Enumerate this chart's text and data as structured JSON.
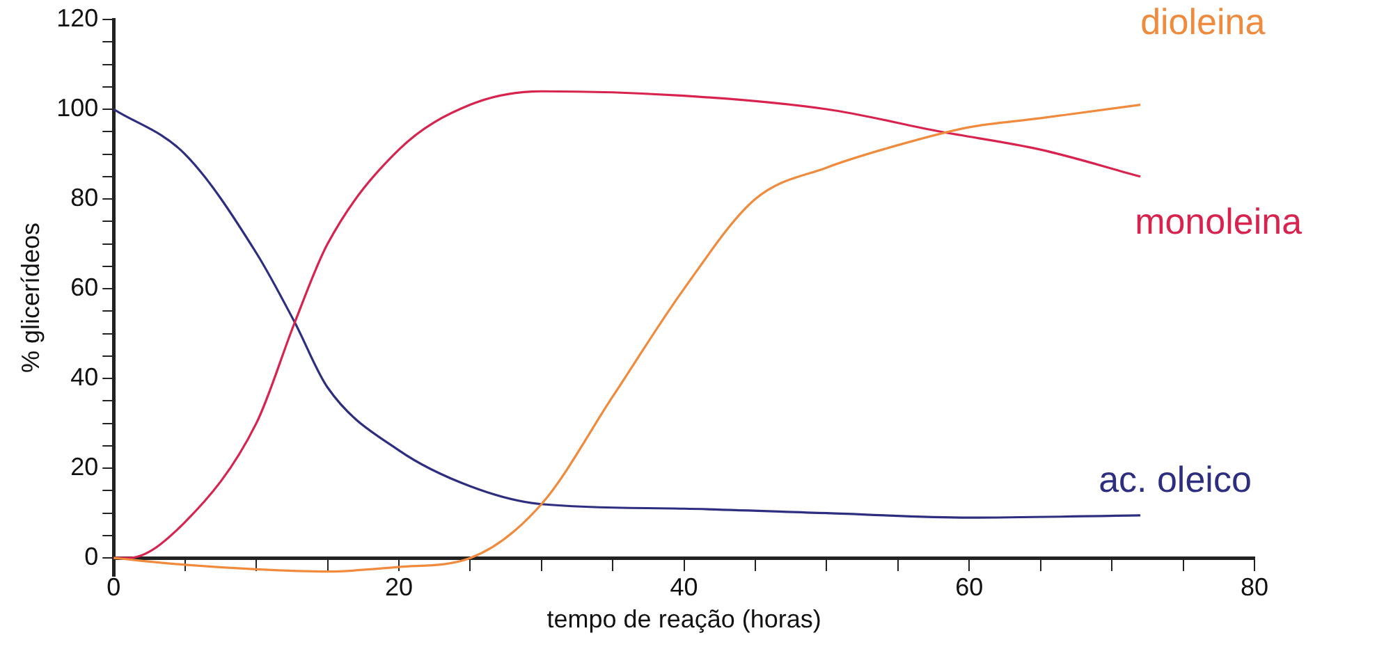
{
  "chart_data": {
    "type": "line",
    "xlabel": "tempo de reação (horas)",
    "ylabel": "% glicerídeos",
    "xlim": [
      0,
      80
    ],
    "xticks": [
      0,
      {
        "value": 5,
        "label": null
      },
      {
        "value": 10,
        "label": null
      },
      {
        "value": 15,
        "label": null
      },
      20,
      {
        "value": 25,
        "label": null
      },
      {
        "value": 30,
        "label": null
      },
      {
        "value": 35,
        "label": null
      },
      40,
      {
        "value": 45,
        "label": null
      },
      {
        "value": 50,
        "label": null
      },
      {
        "value": 55,
        "label": null
      },
      60,
      {
        "value": 65,
        "label": null
      },
      {
        "value": 70,
        "label": null
      },
      {
        "value": 75,
        "label": null
      },
      80
    ],
    "ylim": [
      -4,
      120
    ],
    "yticks": [
      0,
      {
        "value": 5,
        "label": null
      },
      {
        "value": 10,
        "label": null
      },
      {
        "value": 15,
        "label": null
      },
      20,
      {
        "value": 25,
        "label": null
      },
      {
        "value": 30,
        "label": null
      },
      {
        "value": 35,
        "label": null
      },
      40,
      {
        "value": 45,
        "label": null
      },
      {
        "value": 50,
        "label": null
      },
      {
        "value": 55,
        "label": null
      },
      60,
      {
        "value": 65,
        "label": null
      },
      {
        "value": 70,
        "label": null
      },
      {
        "value": 75,
        "label": null
      },
      80,
      {
        "value": 85,
        "label": null
      },
      {
        "value": 90,
        "label": null
      },
      {
        "value": 95,
        "label": null
      },
      100,
      {
        "value": 105,
        "label": null
      },
      {
        "value": 110,
        "label": null
      },
      {
        "value": 115,
        "label": null
      },
      120
    ],
    "grid": false,
    "legend": false,
    "marker": "none",
    "line_style": "solid",
    "series": [
      {
        "name": "dioleina",
        "color": "#f08a3c",
        "x": [
          0,
          5,
          10,
          15,
          20,
          25,
          30,
          35,
          40,
          45,
          50,
          55,
          60,
          65,
          72
        ],
        "values": [
          0,
          -1.5,
          -2.5,
          -3,
          -2,
          0,
          12,
          36,
          60,
          80,
          87,
          92,
          96,
          98,
          101
        ]
      },
      {
        "name": "monoleina",
        "color": "#d8234f",
        "x": [
          0,
          1,
          5,
          10,
          12.7,
          15,
          20,
          25,
          30,
          40,
          50,
          58,
          65,
          72
        ],
        "values": [
          0,
          0,
          8,
          30,
          52.5,
          70,
          91,
          101,
          104,
          103,
          100,
          95,
          91,
          85
        ]
      },
      {
        "name": "ac. oleico",
        "color": "#2e2e80",
        "x": [
          0,
          5,
          10,
          12.7,
          15,
          20,
          25,
          30,
          40,
          50,
          60,
          72
        ],
        "values": [
          100,
          90,
          68,
          52.5,
          38,
          24,
          16,
          12,
          11,
          10,
          9,
          9.5
        ]
      }
    ]
  }
}
